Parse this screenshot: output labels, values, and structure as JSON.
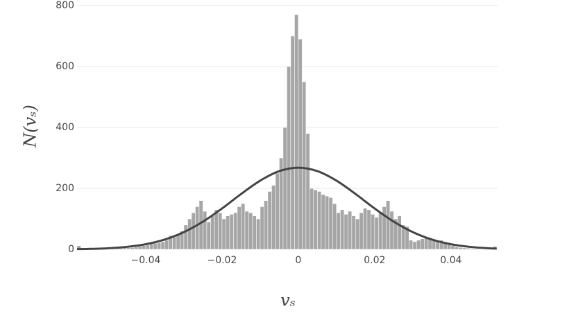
{
  "chart_data": {
    "type": "histogram",
    "x_label": "vₛ",
    "y_label": "N(vₛ)",
    "bins": [
      -0.058,
      -0.057,
      -0.056,
      -0.055,
      -0.054,
      -0.053,
      -0.052,
      -0.051,
      -0.05,
      -0.049,
      -0.048,
      -0.047,
      -0.046,
      -0.045,
      -0.044,
      -0.043,
      -0.042,
      -0.041,
      -0.04,
      -0.039,
      -0.038,
      -0.037,
      -0.036,
      -0.035,
      -0.034,
      -0.033,
      -0.032,
      -0.031,
      -0.03,
      -0.029,
      -0.028,
      -0.027,
      -0.026,
      -0.025,
      -0.024,
      -0.023,
      -0.022,
      -0.021,
      -0.02,
      -0.019,
      -0.018,
      -0.017,
      -0.016,
      -0.015,
      -0.014,
      -0.013,
      -0.012,
      -0.011,
      -0.01,
      -0.009,
      -0.008,
      -0.007,
      -0.006,
      -0.005,
      -0.004,
      -0.003,
      -0.002,
      -0.001,
      0,
      0.001,
      0.002,
      0.003,
      0.004,
      0.005,
      0.006,
      0.007,
      0.008,
      0.009,
      0.01,
      0.011,
      0.012,
      0.013,
      0.014,
      0.015,
      0.016,
      0.017,
      0.018,
      0.019,
      0.02,
      0.021,
      0.022,
      0.023,
      0.024,
      0.025,
      0.026,
      0.027,
      0.028,
      0.029,
      0.03,
      0.031,
      0.032,
      0.033,
      0.034,
      0.035,
      0.036,
      0.037,
      0.038,
      0.039,
      0.04,
      0.041,
      0.042,
      0.043,
      0.044,
      0.045,
      0.046,
      0.047,
      0.048,
      0.049,
      0.05,
      0.051,
      0.052
    ],
    "counts": [
      12,
      0,
      0,
      1,
      1,
      1,
      2,
      2,
      2,
      3,
      3,
      4,
      5,
      5,
      6,
      8,
      10,
      12,
      14,
      18,
      20,
      22,
      25,
      30,
      45,
      40,
      50,
      60,
      80,
      100,
      120,
      140,
      160,
      125,
      90,
      110,
      130,
      120,
      100,
      110,
      115,
      120,
      140,
      150,
      125,
      120,
      110,
      100,
      140,
      160,
      190,
      210,
      250,
      300,
      400,
      600,
      700,
      770,
      690,
      550,
      380,
      200,
      195,
      190,
      180,
      175,
      170,
      150,
      120,
      130,
      115,
      125,
      110,
      100,
      120,
      135,
      130,
      115,
      105,
      120,
      140,
      160,
      125,
      100,
      110,
      80,
      75,
      30,
      25,
      30,
      35,
      40,
      38,
      30,
      28,
      30,
      25,
      20,
      12,
      8,
      6,
      5,
      4,
      3,
      3,
      2,
      2,
      2,
      2,
      10
    ],
    "color": "#a6a6a6",
    "curve": {
      "color": "#444444",
      "x": [
        -0.058,
        -0.055,
        -0.05,
        -0.045,
        -0.04,
        -0.035,
        -0.03,
        -0.025,
        -0.02,
        -0.015,
        -0.01,
        -0.005,
        0,
        0.005,
        0.01,
        0.015,
        0.02,
        0.025,
        0.03,
        0.035,
        0.04,
        0.045,
        0.05,
        0.052
      ],
      "values": [
        0.8,
        1.4,
        3.5,
        8.1,
        16.8,
        32.2,
        56.5,
        90.9,
        134.1,
        181.6,
        225.4,
        256.7,
        268,
        256.7,
        225.4,
        181.6,
        134.1,
        90.9,
        56.5,
        32.2,
        16.8,
        8.1,
        3.5,
        2.5
      ]
    },
    "xlim": [
      -0.058,
      0.0524
    ],
    "ylim": [
      0,
      800
    ],
    "xticks": [
      {
        "value": -0.04,
        "label": "−0.04"
      },
      {
        "value": -0.02,
        "label": "−0.02"
      },
      0,
      {
        "value": 0.02,
        "label": "0.02"
      },
      {
        "value": 0.04,
        "label": "0.04"
      }
    ],
    "yticks": [
      0,
      200,
      400,
      600,
      800
    ],
    "grid": true
  }
}
